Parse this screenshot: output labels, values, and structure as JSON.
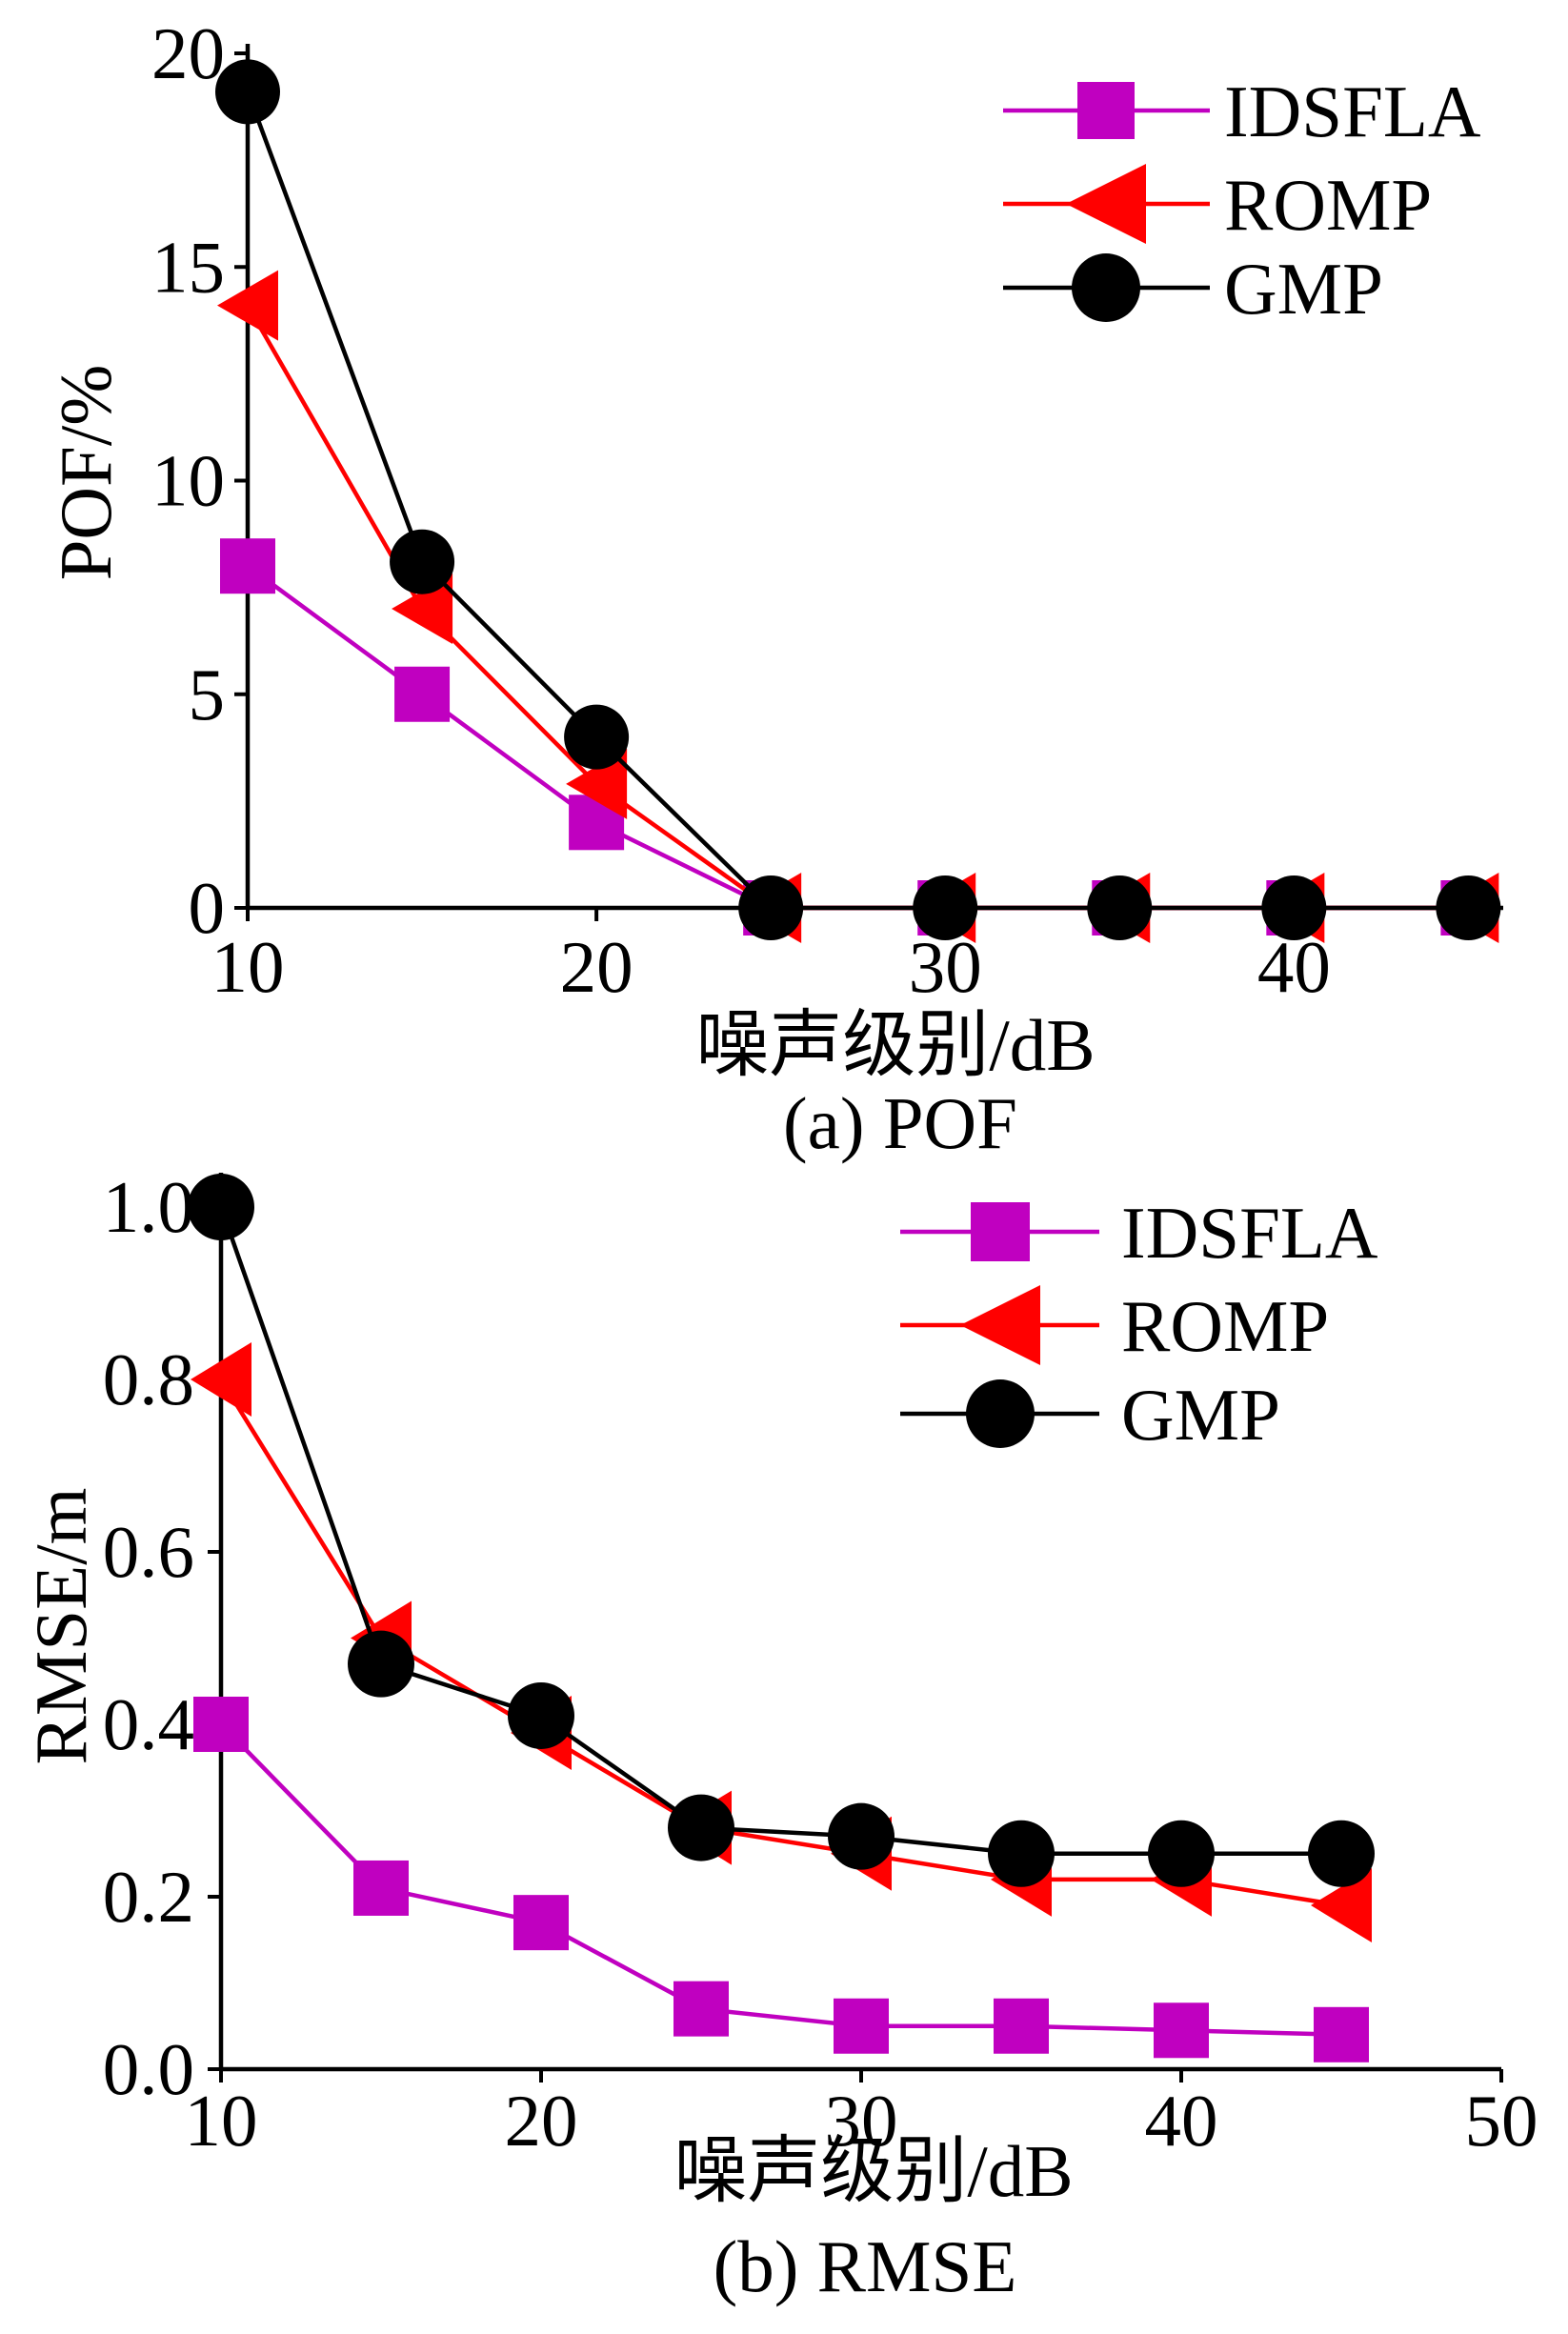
{
  "chart_data": [
    {
      "type": "line",
      "xlabel": "噪声级别/dB",
      "ylabel": "POF/%",
      "caption": "(a) POF",
      "x": [
        10,
        15,
        20,
        25,
        30,
        35,
        40,
        45
      ],
      "xticks": [
        "10",
        "20",
        "30",
        "40"
      ],
      "yticks": [
        "0",
        "5",
        "10",
        "15",
        "20"
      ],
      "xlim": [
        10,
        46
      ],
      "ylim": [
        0,
        20
      ],
      "grid": false,
      "legend_position": "top-right",
      "series": [
        {
          "name": "IDSFLA",
          "marker": "square",
          "color": "#c000c0",
          "values": [
            8.0,
            5.0,
            2.0,
            0,
            0,
            0,
            0,
            0
          ]
        },
        {
          "name": "ROMP",
          "marker": "triangle-left",
          "color": "#ff0000",
          "values": [
            14.1,
            7.0,
            2.9,
            0,
            0,
            0,
            0,
            0
          ]
        },
        {
          "name": "GMP",
          "marker": "circle",
          "color": "#000000",
          "values": [
            19.1,
            8.1,
            4.0,
            0,
            0,
            0,
            0,
            0
          ]
        }
      ]
    },
    {
      "type": "line",
      "xlabel": "噪声级别/dB",
      "ylabel": "RMSE/m",
      "caption": "(b) RMSE",
      "x": [
        10,
        15,
        20,
        25,
        30,
        35,
        40,
        45
      ],
      "xticks": [
        "10",
        "20",
        "30",
        "40",
        "50"
      ],
      "yticks": [
        "0.0",
        "0.2",
        "0.4",
        "0.6",
        "0.8",
        "1.0"
      ],
      "xlim": [
        10,
        50
      ],
      "ylim": [
        0,
        1.0
      ],
      "grid": false,
      "legend_position": "top-right",
      "series": [
        {
          "name": "IDSFLA",
          "marker": "square",
          "color": "#c000c0",
          "values": [
            0.4,
            0.21,
            0.17,
            0.07,
            0.05,
            0.05,
            0.045,
            0.04
          ]
        },
        {
          "name": "ROMP",
          "marker": "triangle-left",
          "color": "#ff0000",
          "values": [
            0.8,
            0.5,
            0.39,
            0.28,
            0.25,
            0.22,
            0.22,
            0.19
          ]
        },
        {
          "name": "GMP",
          "marker": "circle",
          "color": "#000000",
          "values": [
            1.0,
            0.47,
            0.41,
            0.28,
            0.27,
            0.25,
            0.25,
            0.25
          ]
        }
      ]
    }
  ]
}
